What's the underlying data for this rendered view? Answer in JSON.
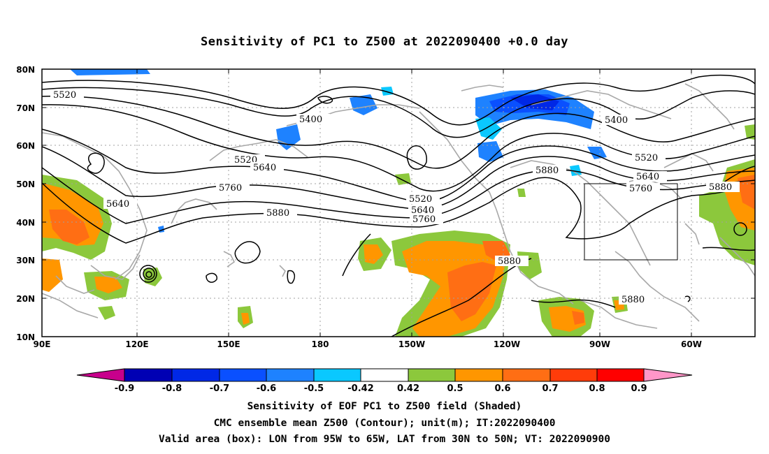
{
  "title": "Sensitivity of PC1 to Z500 at 2022090400 +0.0 day",
  "map": {
    "lat_labels": [
      "80N",
      "70N",
      "60N",
      "50N",
      "40N",
      "30N",
      "20N",
      "10N"
    ],
    "lon_labels": [
      "90E",
      "120E",
      "150E",
      "180",
      "150W",
      "120W",
      "90W",
      "60W"
    ],
    "contour_labels": [
      "5520",
      "5400",
      "5520",
      "5640",
      "5640",
      "5760",
      "5880",
      "5400",
      "5880",
      "5520",
      "5640",
      "5760",
      "5520",
      "5640",
      "5760",
      "5880",
      "5880",
      "5880"
    ],
    "valid_box": {
      "lon_west": "95W",
      "lon_east": "65W",
      "lat_south": "30N",
      "lat_north": "50N"
    }
  },
  "colorbar": {
    "labels": [
      "-0.9",
      "-0.8",
      "-0.7",
      "-0.6",
      "-0.5",
      "-0.42",
      "0.42",
      "0.5",
      "0.6",
      "0.7",
      "0.8",
      "0.9"
    ],
    "colors": [
      "#c8008c",
      "#0000b4",
      "#0028e6",
      "#0a50ff",
      "#1e82ff",
      "#0ac8ff",
      "#ffffff",
      "#8cc83c",
      "#ff9600",
      "#ff6e14",
      "#ff3c0a",
      "#ff0000",
      "#ff96c8"
    ]
  },
  "captions": [
    "Sensitivity of EOF PC1 to Z500 field (Shaded)",
    "CMC ensemble mean Z500 (Contour); unit(m); IT:2022090400",
    "Valid area (box): LON from 95W to 65W, LAT from 30N to 50N; VT: 2022090900"
  ]
}
